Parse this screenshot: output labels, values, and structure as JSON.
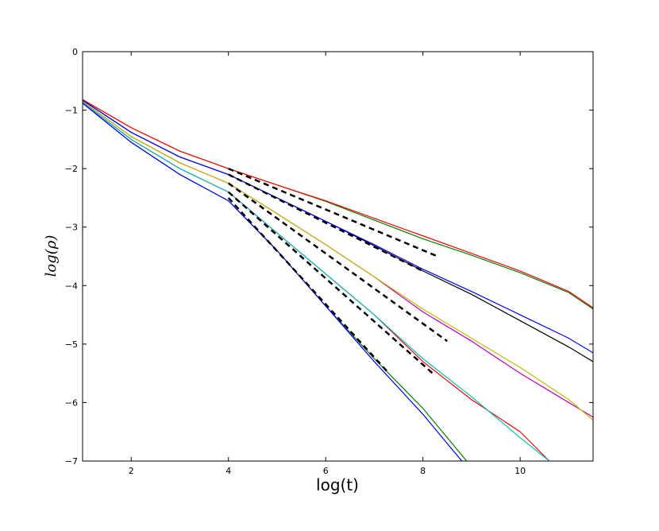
{
  "chart_data": {
    "type": "line",
    "xlabel": "log(t)",
    "ylabel": "log(ρ)",
    "xlim": [
      1,
      11.5
    ],
    "ylim": [
      -7,
      0
    ],
    "xticks": [
      2,
      4,
      6,
      8,
      10
    ],
    "yticks": [
      {
        "value": -7,
        "label": "−7"
      },
      {
        "value": -6,
        "label": "−6"
      },
      {
        "value": -5,
        "label": "−5"
      },
      {
        "value": -4,
        "label": "−4"
      },
      {
        "value": -3,
        "label": "−3"
      },
      {
        "value": -2,
        "label": "−2"
      },
      {
        "value": -1,
        "label": "−1"
      },
      0
    ],
    "series": [
      {
        "color": "#008000",
        "x": [
          1,
          2,
          3,
          4,
          5,
          6,
          7,
          8,
          9,
          10,
          11,
          11.5
        ],
        "values": [
          -0.82,
          -1.3,
          -1.7,
          -2.0,
          -2.28,
          -2.56,
          -2.88,
          -3.2,
          -3.48,
          -3.78,
          -4.12,
          -4.4
        ]
      },
      {
        "color": "#ff0000",
        "x": [
          1,
          2,
          3,
          4,
          5,
          6,
          7,
          8,
          9,
          10,
          11,
          11.5
        ],
        "values": [
          -0.82,
          -1.3,
          -1.7,
          -2.0,
          -2.28,
          -2.55,
          -2.85,
          -3.15,
          -3.45,
          -3.75,
          -4.1,
          -4.38
        ]
      },
      {
        "color": "#000000",
        "x": [
          1,
          2,
          3,
          4,
          5,
          6,
          7,
          8,
          9,
          10,
          11,
          11.5
        ],
        "values": [
          -0.83,
          -1.38,
          -1.8,
          -2.1,
          -2.5,
          -2.9,
          -3.32,
          -3.75,
          -4.15,
          -4.6,
          -5.05,
          -5.3
        ]
      },
      {
        "color": "#0000ff",
        "x": [
          1,
          2,
          3,
          4,
          5,
          6,
          7,
          8,
          9,
          10,
          11,
          11.5
        ],
        "values": [
          -0.83,
          -1.38,
          -1.8,
          -2.1,
          -2.5,
          -2.9,
          -3.3,
          -3.72,
          -4.1,
          -4.5,
          -4.9,
          -5.15
        ]
      },
      {
        "color": "#bf00bf",
        "x": [
          1,
          2,
          3,
          4,
          5,
          6,
          7,
          8,
          9,
          10,
          11,
          11.5
        ],
        "values": [
          -0.85,
          -1.45,
          -1.9,
          -2.25,
          -2.77,
          -3.3,
          -3.85,
          -4.45,
          -4.95,
          -5.5,
          -6.0,
          -6.25
        ]
      },
      {
        "color": "#bfbf00",
        "x": [
          1,
          2,
          3,
          4,
          5,
          6,
          7,
          8,
          9,
          10,
          11,
          11.5
        ],
        "values": [
          -0.85,
          -1.45,
          -1.9,
          -2.25,
          -2.77,
          -3.3,
          -3.85,
          -4.4,
          -4.9,
          -5.4,
          -5.95,
          -6.3
        ]
      },
      {
        "color": "#ff0000",
        "x": [
          1,
          2,
          3,
          4,
          5,
          6,
          7,
          8,
          9,
          10,
          10.6
        ],
        "values": [
          -0.87,
          -1.5,
          -2.0,
          -2.4,
          -3.1,
          -3.8,
          -4.5,
          -5.3,
          -5.95,
          -6.5,
          -7.0
        ]
      },
      {
        "color": "#00bfbf",
        "x": [
          1,
          2,
          3,
          4,
          5,
          6,
          7,
          8,
          9,
          10,
          10.6
        ],
        "values": [
          -0.87,
          -1.5,
          -2.0,
          -2.4,
          -3.1,
          -3.8,
          -4.5,
          -5.25,
          -5.9,
          -6.6,
          -7.0
        ]
      },
      {
        "color": "#008000",
        "x": [
          1,
          2,
          3,
          4,
          5,
          6,
          7,
          8,
          8.9
        ],
        "values": [
          -0.88,
          -1.55,
          -2.1,
          -2.55,
          -3.4,
          -4.35,
          -5.25,
          -6.1,
          -7.0
        ]
      },
      {
        "color": "#0000ff",
        "x": [
          1,
          2,
          3,
          4,
          5,
          6,
          7,
          8,
          8.8
        ],
        "values": [
          -0.88,
          -1.55,
          -2.1,
          -2.55,
          -3.4,
          -4.35,
          -5.3,
          -6.2,
          -7.0
        ]
      },
      {
        "color": "#000000",
        "dashed": true,
        "x": [
          4,
          8.3
        ],
        "values": [
          -2.0,
          -3.5
        ]
      },
      {
        "color": "#000000",
        "dashed": true,
        "x": [
          4,
          8.0
        ],
        "values": [
          -2.1,
          -3.75
        ]
      },
      {
        "color": "#000000",
        "dashed": true,
        "x": [
          4,
          8.5
        ],
        "values": [
          -2.25,
          -4.95
        ]
      },
      {
        "color": "#000000",
        "dashed": true,
        "x": [
          4,
          8.2
        ],
        "values": [
          -2.4,
          -5.5
        ]
      },
      {
        "color": "#000000",
        "dashed": true,
        "x": [
          4,
          7.3
        ],
        "values": [
          -2.5,
          -5.5
        ]
      }
    ]
  }
}
